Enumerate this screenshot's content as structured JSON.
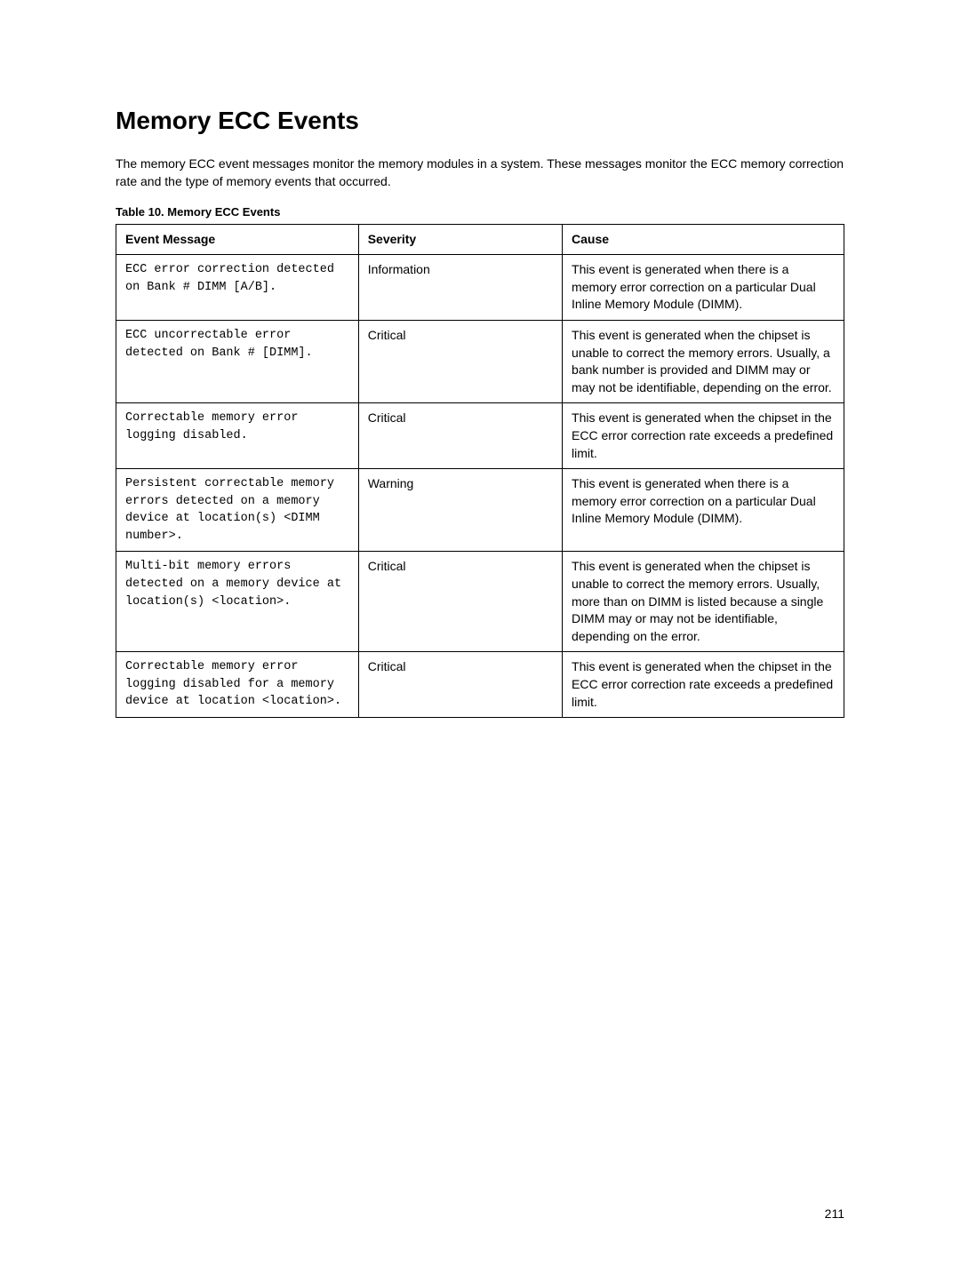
{
  "title": "Memory ECC Events",
  "intro": "The memory ECC event messages monitor the memory modules in a system. These messages monitor the ECC memory correction rate and the type of memory events that occurred.",
  "table_caption": "Table 10. Memory ECC Events",
  "headers": {
    "col1": "Event Message",
    "col2": "Severity",
    "col3": "Cause"
  },
  "rows": [
    {
      "message": "ECC error correction detected on Bank # DIMM [A/B].",
      "severity": "Information",
      "cause": "This event is generated when there is a memory error correction on a particular Dual Inline Memory Module (DIMM)."
    },
    {
      "message": "ECC uncorrectable error detected on Bank # [DIMM].",
      "severity": "Critical",
      "cause": "This event is generated when the chipset is unable to correct the memory errors. Usually, a bank number is provided and DIMM may or may not be identifiable, depending on the error."
    },
    {
      "message": "Correctable memory error logging disabled.",
      "severity": "Critical",
      "cause": "This event is generated when the chipset in the ECC error correction rate exceeds a predefined limit."
    },
    {
      "message": "Persistent correctable memory errors detected on a memory device at location(s) <DIMM number>.",
      "severity": "Warning",
      "cause": "This event is generated when there is a memory error correction on a particular Dual Inline Memory Module (DIMM)."
    },
    {
      "message": "Multi-bit memory errors detected on a memory device at location(s) <location>.",
      "severity": "Critical",
      "cause": "This event is generated when the chipset is unable to correct the memory errors. Usually, more than on DIMM is listed because a single DIMM may or may not be identifiable, depending on the error."
    },
    {
      "message": "Correctable memory error logging disabled for a memory device at location <location>.",
      "severity": "Critical",
      "cause": "This event is generated when the chipset in the ECC error correction rate exceeds a predefined limit."
    }
  ],
  "page_number": "211"
}
